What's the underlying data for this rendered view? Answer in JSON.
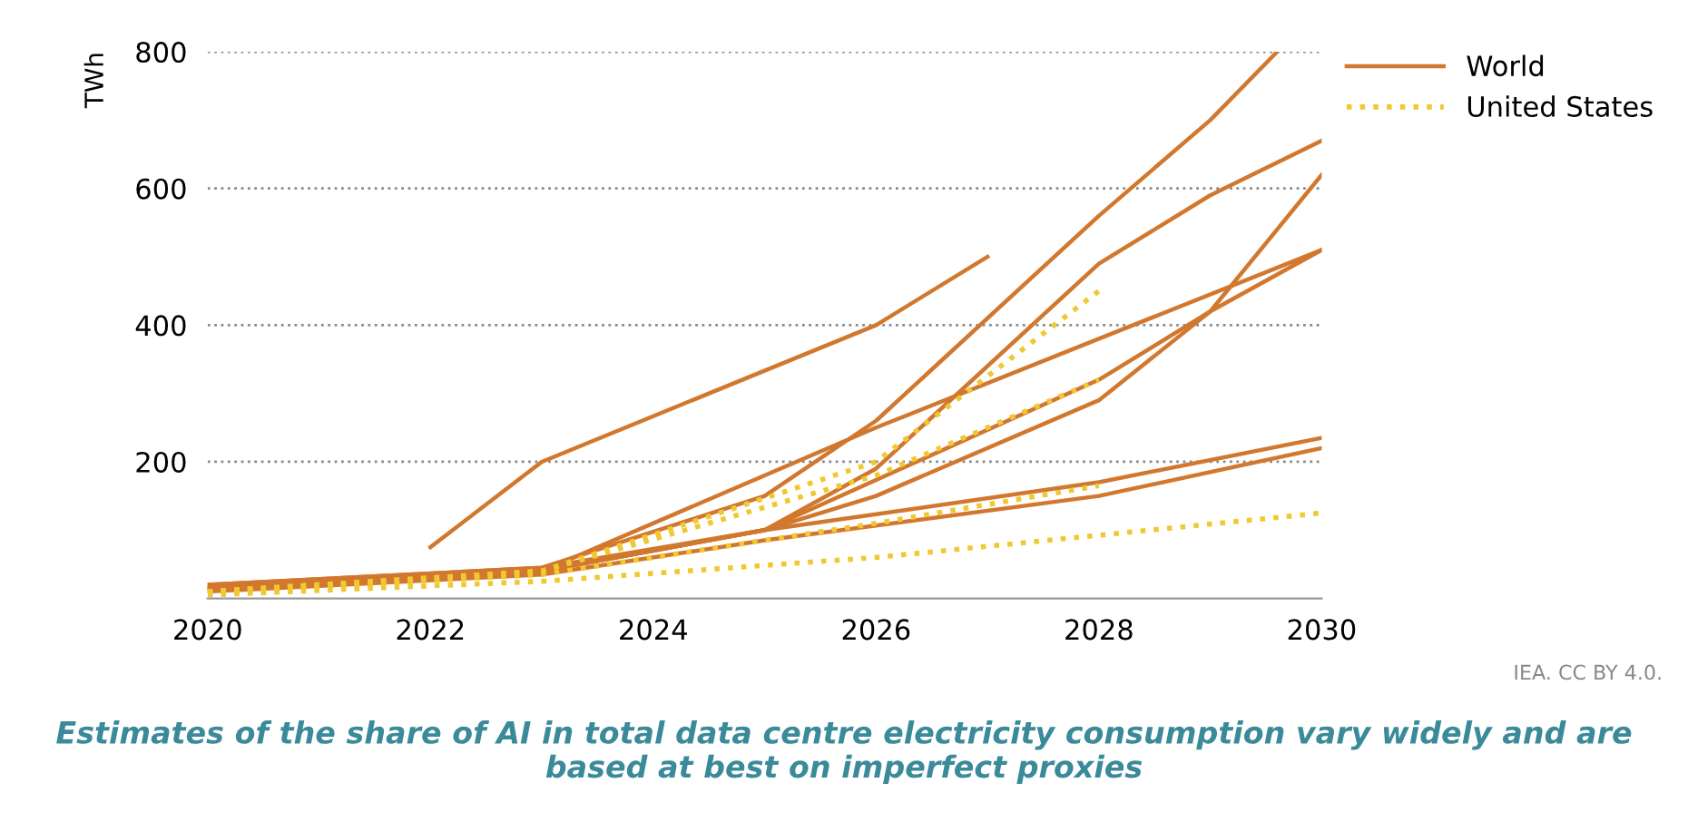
{
  "chart_data": {
    "type": "line",
    "ylabel": "TWh",
    "xlim": [
      2020,
      2030
    ],
    "xticks": [
      2020,
      2022,
      2024,
      2026,
      2028,
      2030
    ],
    "ylim": [
      0,
      800
    ],
    "yticks": [
      200,
      400,
      600,
      800
    ],
    "grid": "y",
    "legend": "top right",
    "marker": "none",
    "series": [
      {
        "name": "World",
        "color": "#d2782e",
        "line_style": "solid",
        "x": [
          2022,
          2023,
          2026,
          2027
        ],
        "values": [
          75,
          200,
          400,
          500
        ]
      },
      {
        "color": "#d2782e",
        "line_style": "solid",
        "x": [
          2020,
          2023,
          2025,
          2026,
          2028,
          2029,
          2029.6
        ],
        "values": [
          20,
          45,
          150,
          260,
          560,
          700,
          800
        ]
      },
      {
        "color": "#d2782e",
        "line_style": "solid",
        "x": [
          2020,
          2023,
          2025,
          2026,
          2028,
          2029,
          2030
        ],
        "values": [
          20,
          45,
          100,
          190,
          490,
          590,
          670
        ]
      },
      {
        "color": "#d2782e",
        "line_style": "solid",
        "x": [
          2020,
          2023,
          2025,
          2026,
          2028,
          2029,
          2030
        ],
        "values": [
          15,
          40,
          100,
          150,
          290,
          420,
          620
        ]
      },
      {
        "color": "#d2782e",
        "line_style": "solid",
        "x": [
          2020,
          2023,
          2026,
          2028,
          2030
        ],
        "values": [
          15,
          40,
          250,
          380,
          510
        ]
      },
      {
        "color": "#d2782e",
        "line_style": "solid",
        "x": [
          2020,
          2023,
          2025,
          2028,
          2029,
          2030
        ],
        "values": [
          15,
          40,
          100,
          320,
          420,
          510
        ]
      },
      {
        "color": "#d2782e",
        "line_style": "solid",
        "x": [
          2020,
          2023,
          2025,
          2028,
          2030
        ],
        "values": [
          15,
          40,
          100,
          170,
          235
        ]
      },
      {
        "color": "#d2782e",
        "line_style": "solid",
        "x": [
          2020,
          2023,
          2025,
          2028,
          2030
        ],
        "values": [
          10,
          35,
          85,
          150,
          220
        ]
      },
      {
        "name": "United States",
        "color": "#f0c832",
        "line_style": "dotted",
        "x": [
          2020,
          2023,
          2026,
          2028
        ],
        "values": [
          10,
          40,
          200,
          450
        ]
      },
      {
        "color": "#f0c832",
        "line_style": "dotted",
        "x": [
          2020,
          2023,
          2026,
          2028
        ],
        "values": [
          10,
          40,
          180,
          320
        ]
      },
      {
        "color": "#f0c832",
        "line_style": "dotted",
        "x": [
          2020,
          2023,
          2026,
          2028
        ],
        "values": [
          8,
          35,
          110,
          165
        ]
      },
      {
        "color": "#f0c832",
        "line_style": "dotted",
        "x": [
          2020,
          2023,
          2026,
          2030
        ],
        "values": [
          5,
          25,
          60,
          125
        ]
      }
    ],
    "annotations": [
      "IEA. CC BY 4.0.",
      "Estimates of the share of AI in total data centre electricity consumption vary widely and are based at best on imperfect proxies"
    ]
  }
}
